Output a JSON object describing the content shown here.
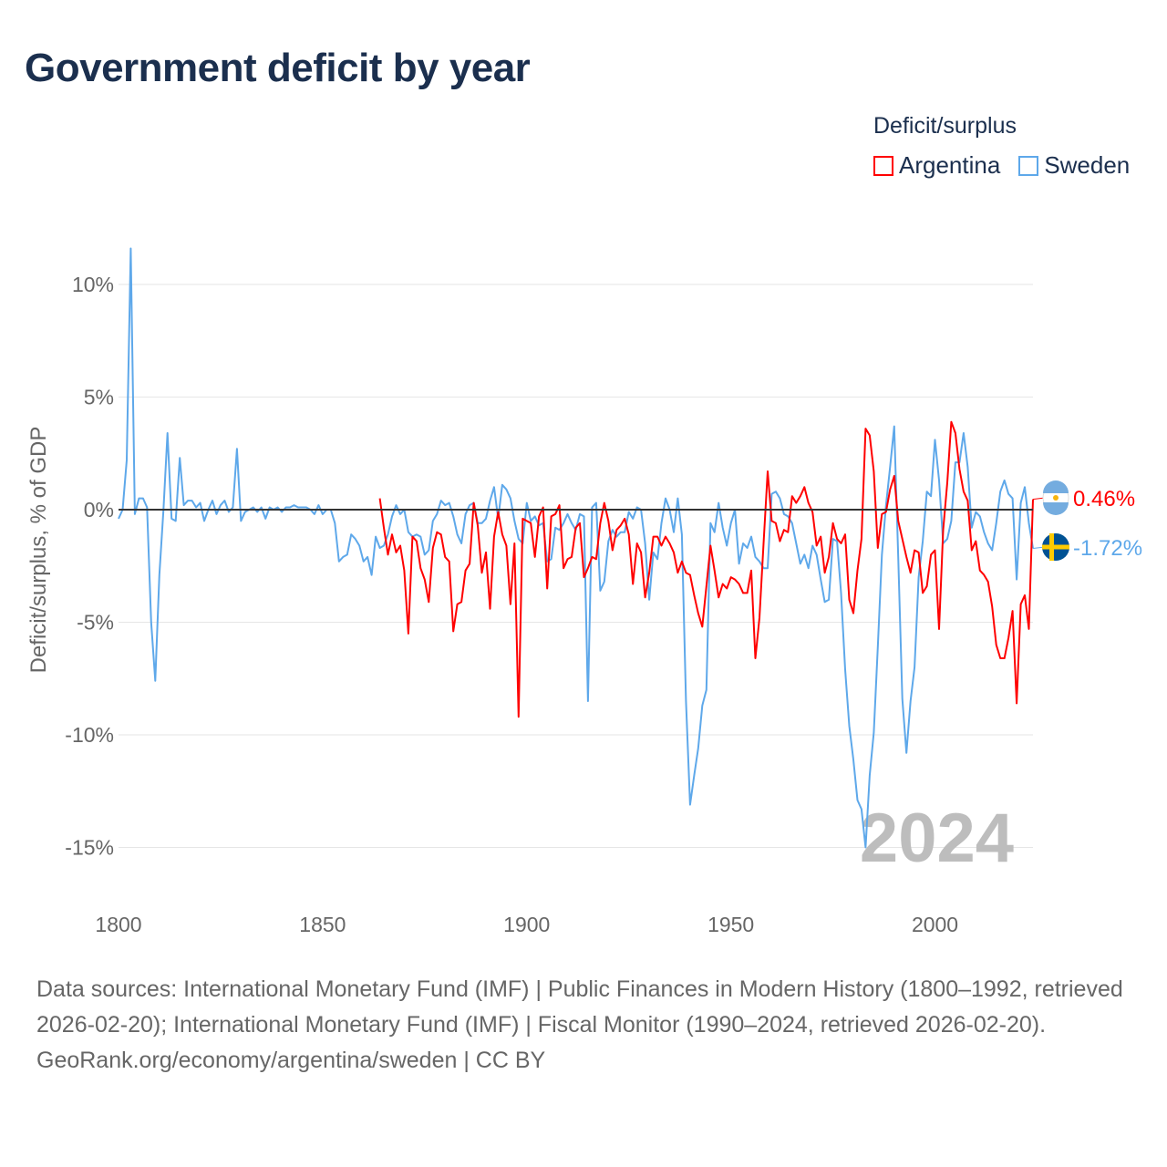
{
  "title": "Government deficit by year",
  "legend": {
    "title": "Deficit/surplus",
    "items": [
      {
        "label": "Argentina",
        "color": "#ff0000"
      },
      {
        "label": "Sweden",
        "color": "#5ea8ea"
      }
    ]
  },
  "footer": {
    "sources": "Data sources: International Monetary Fund (IMF) | Public Finances in Modern History (1800–1992, retrieved 2026-02-20); International Monetary Fund (IMF) | Fiscal Monitor (1990–2024, retrieved 2026-02-20).",
    "credit": "GeoRank.org/economy/argentina/sweden | CC BY"
  },
  "chart_data": {
    "type": "line",
    "title": "Government deficit by year",
    "xlabel": "",
    "ylabel": "Deficit/surplus, % of GDP",
    "xlim": [
      1800,
      2024
    ],
    "ylim": [
      -17,
      12
    ],
    "x_ticks": [
      "1800",
      "1850",
      "1900",
      "1950",
      "2000"
    ],
    "y_ticks": [
      {
        "v": 10,
        "label": "10%"
      },
      {
        "v": 5,
        "label": "5%"
      },
      {
        "v": 0,
        "label": "0%"
      },
      {
        "v": -5,
        "label": "-5%"
      },
      {
        "v": -10,
        "label": "-10%"
      },
      {
        "v": -15,
        "label": "-15%"
      }
    ],
    "year_watermark": "2024",
    "series": [
      {
        "name": "Argentina",
        "color": "#ff0000",
        "start_year": 1864,
        "end_label": "0.46%",
        "values": [
          0.5,
          -0.8,
          -2.0,
          -1.1,
          -1.9,
          -1.6,
          -2.7,
          -5.5,
          -1.2,
          -1.4,
          -2.6,
          -3.1,
          -4.1,
          -1.7,
          -1.0,
          -1.1,
          -2.1,
          -2.3,
          -5.4,
          -4.2,
          -4.1,
          -2.7,
          -2.4,
          0.3,
          -0.7,
          -2.8,
          -1.9,
          -4.4,
          -1.2,
          -0.1,
          -1.1,
          -1.6,
          -4.2,
          -1.5,
          -9.2,
          -0.4,
          -0.5,
          -0.6,
          -2.1,
          -0.3,
          0.1,
          -3.5,
          -0.3,
          -0.2,
          0.2,
          -2.6,
          -2.2,
          -2.1,
          -0.8,
          -0.6,
          -3.0,
          -2.6,
          -2.1,
          -2.2,
          -0.6,
          0.3,
          -0.5,
          -1.8,
          -0.9,
          -0.7,
          -0.4,
          -1.1,
          -3.3,
          -1.5,
          -1.9,
          -3.9,
          -2.8,
          -1.2,
          -1.2,
          -1.6,
          -1.2,
          -1.5,
          -1.9,
          -2.8,
          -2.3,
          -2.8,
          -2.9,
          -3.8,
          -4.6,
          -5.2,
          -3.4,
          -1.6,
          -2.7,
          -3.9,
          -3.3,
          -3.5,
          -3.0,
          -3.1,
          -3.3,
          -3.7,
          -3.7,
          -2.7,
          -6.6,
          -4.8,
          -1.5,
          1.7,
          -0.5,
          -0.6,
          -1.4,
          -0.9,
          -1.0,
          0.6,
          0.3,
          0.6,
          1.0,
          0.3,
          -0.1,
          -1.6,
          -1.2,
          -2.8,
          -2.1,
          -0.6,
          -1.3,
          -1.5,
          -1.1,
          -4.0,
          -4.6,
          -2.7,
          -1.3,
          3.6,
          3.3,
          1.7,
          -1.7,
          -0.2,
          -0.1,
          0.9,
          1.5,
          -0.5,
          -1.3,
          -2.1,
          -2.8,
          -1.8,
          -1.9,
          -3.7,
          -3.4,
          -2.0,
          -1.8,
          -5.3,
          -0.9,
          1.2,
          3.9,
          3.4,
          1.8,
          0.8,
          0.4,
          -1.8,
          -1.4,
          -2.7,
          -2.9,
          -3.2,
          -4.3,
          -6.0,
          -6.6,
          -6.6,
          -5.7,
          -4.5,
          -8.6,
          -4.2,
          -3.8,
          -5.3,
          0.46
        ]
      },
      {
        "name": "Sweden",
        "color": "#5ea8ea",
        "start_year": 1800,
        "end_label": "-1.72%",
        "values": [
          -0.4,
          0,
          2.2,
          11.6,
          -0.2,
          0.5,
          0.5,
          0.1,
          -5.0,
          -7.6,
          -2.9,
          0,
          3.4,
          -0.4,
          -0.5,
          2.3,
          0.2,
          0.4,
          0.4,
          0.1,
          0.3,
          -0.5,
          0,
          0.4,
          -0.2,
          0.2,
          0.4,
          -0.1,
          0.1,
          2.7,
          -0.5,
          -0.1,
          0,
          0.1,
          -0.1,
          0.1,
          -0.4,
          0.1,
          0,
          0.1,
          -0.1,
          0.1,
          0.1,
          0.2,
          0.1,
          0.1,
          0.1,
          0,
          -0.2,
          0.2,
          -0.2,
          0,
          0,
          -0.6,
          -2.3,
          -2.1,
          -2.0,
          -1.1,
          -1.3,
          -1.6,
          -2.3,
          -2.1,
          -2.9,
          -1.2,
          -1.7,
          -1.6,
          -1.1,
          -0.3,
          0.2,
          -0.2,
          0,
          -1.0,
          -1.2,
          -1.1,
          -1.2,
          -2.0,
          -1.8,
          -0.5,
          -0.2,
          0.4,
          0.2,
          0.3,
          -0.3,
          -1.1,
          -1.5,
          -0.2,
          0.2,
          0.3,
          -0.6,
          -0.6,
          -0.4,
          0.4,
          1.0,
          -0.4,
          1.1,
          0.9,
          0.5,
          -0.5,
          -1.3,
          -1.5,
          0.3,
          -0.5,
          -0.3,
          -0.7,
          -0.6,
          -2.3,
          -2.2,
          -0.8,
          -0.9,
          -0.6,
          -0.2,
          -0.6,
          -0.9,
          -0.2,
          -0.3,
          -8.5,
          0.1,
          0.3,
          -3.6,
          -3.2,
          -1.4,
          -0.9,
          -1.2,
          -1.0,
          -1.0,
          -0.1,
          -0.4,
          0.1,
          0,
          -1.5,
          -4.0,
          -1.9,
          -2.2,
          -0.6,
          0.5,
          0,
          -1.0,
          0.5,
          -1.1,
          -8.5,
          -13.1,
          -11.8,
          -10.6,
          -8.7,
          -8.0,
          -0.6,
          -1.0,
          0.3,
          -0.8,
          -1.6,
          -0.6,
          0,
          -2.4,
          -1.5,
          -1.7,
          -1.2,
          -2.1,
          -2.3,
          -2.6,
          -2.6,
          0.7,
          0.8,
          0.5,
          -0.2,
          -0.3,
          -0.6,
          -1.5,
          -2.4,
          -2.0,
          -2.6,
          -1.6,
          -2.0,
          -3.1,
          -4.1,
          -4.0,
          -1.3,
          -1.4,
          -3.7,
          -7.1,
          -9.6,
          -11.1,
          -12.9,
          -13.3,
          -15.0,
          -11.8,
          -9.9,
          -6.1,
          -2.0,
          0.2,
          1.9,
          3.7,
          -2.1,
          -8.4,
          -10.8,
          -8.5,
          -7.0,
          -3.0,
          -1.4,
          0.8,
          0.6,
          3.1,
          1.3,
          -1.5,
          -1.3,
          -0.5,
          2.1,
          2.1,
          3.4,
          1.9,
          -0.8,
          -0.1,
          -0.3,
          -1.0,
          -1.5,
          -1.8,
          -0.6,
          0.8,
          1.3,
          0.7,
          0.5,
          -3.1,
          0.3,
          1.0,
          -0.6,
          -1.72
        ]
      }
    ]
  }
}
